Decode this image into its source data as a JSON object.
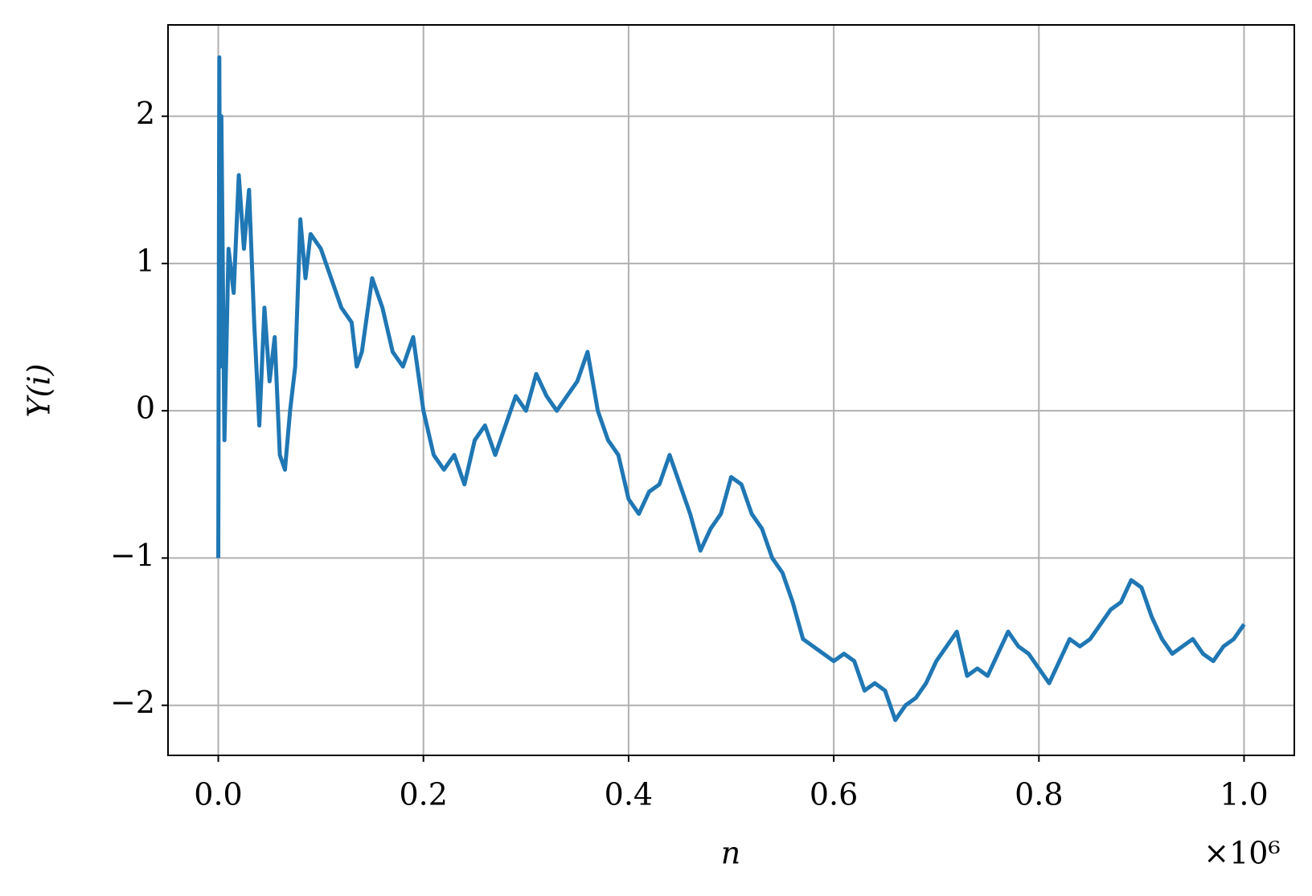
{
  "chart_data": {
    "type": "line",
    "x_label": "n",
    "y_label": "Y(i)",
    "x_offset_label": "×10⁶",
    "color": "#1f77b4",
    "grid": true,
    "xlim": [
      -0.049,
      1.049
    ],
    "ylim": [
      -2.34,
      2.62
    ],
    "xticks": [
      {
        "value": 0,
        "label": "0.0"
      },
      {
        "value": 0.2,
        "label": "0.2"
      },
      {
        "value": 0.4,
        "label": "0.4"
      },
      {
        "value": 0.6,
        "label": "0.6"
      },
      {
        "value": 0.8,
        "label": "0.8"
      },
      {
        "value": 1,
        "label": "1.0"
      }
    ],
    "yticks": [
      {
        "value": -2,
        "label": "−2"
      },
      {
        "value": -1,
        "label": "−1"
      },
      0,
      1,
      2
    ],
    "x": [
      0,
      0.001,
      0.002,
      0.003,
      0.006,
      0.01,
      0.015,
      0.02,
      0.025,
      0.03,
      0.035,
      0.04,
      0.045,
      0.05,
      0.055,
      0.06,
      0.065,
      0.07,
      0.075,
      0.08,
      0.085,
      0.09,
      0.1,
      0.11,
      0.12,
      0.13,
      0.135,
      0.14,
      0.15,
      0.16,
      0.17,
      0.18,
      0.19,
      0.2,
      0.21,
      0.22,
      0.23,
      0.24,
      0.25,
      0.26,
      0.27,
      0.28,
      0.29,
      0.3,
      0.31,
      0.32,
      0.33,
      0.34,
      0.35,
      0.36,
      0.37,
      0.38,
      0.39,
      0.4,
      0.41,
      0.42,
      0.43,
      0.44,
      0.45,
      0.46,
      0.47,
      0.48,
      0.49,
      0.5,
      0.51,
      0.52,
      0.53,
      0.54,
      0.55,
      0.56,
      0.57,
      0.58,
      0.59,
      0.6,
      0.61,
      0.62,
      0.63,
      0.64,
      0.65,
      0.66,
      0.67,
      0.68,
      0.69,
      0.7,
      0.71,
      0.72,
      0.73,
      0.74,
      0.75,
      0.76,
      0.77,
      0.78,
      0.79,
      0.8,
      0.81,
      0.82,
      0.83,
      0.84,
      0.85,
      0.86,
      0.87,
      0.88,
      0.89,
      0.9,
      0.91,
      0.92,
      0.93,
      0.94,
      0.95,
      0.96,
      0.97,
      0.98,
      0.99,
      1.0
    ],
    "values": [
      -1,
      2.4,
      0.3,
      2.0,
      -0.2,
      1.1,
      0.8,
      1.6,
      1.1,
      1.5,
      0.6,
      -0.1,
      0.7,
      0.2,
      0.5,
      -0.3,
      -0.4,
      0.0,
      0.3,
      1.3,
      0.9,
      1.2,
      1.1,
      0.9,
      0.7,
      0.6,
      0.3,
      0.4,
      0.9,
      0.7,
      0.4,
      0.3,
      0.5,
      0.0,
      -0.3,
      -0.4,
      -0.3,
      -0.5,
      -0.2,
      -0.1,
      -0.3,
      -0.1,
      0.1,
      0.0,
      0.25,
      0.1,
      0.0,
      0.1,
      0.2,
      0.4,
      0.0,
      -0.2,
      -0.3,
      -0.6,
      -0.7,
      -0.55,
      -0.5,
      -0.3,
      -0.5,
      -0.7,
      -0.95,
      -0.8,
      -0.7,
      -0.45,
      -0.5,
      -0.7,
      -0.8,
      -1.0,
      -1.1,
      -1.3,
      -1.55,
      -1.6,
      -1.65,
      -1.7,
      -1.65,
      -1.7,
      -1.9,
      -1.85,
      -1.9,
      -2.1,
      -2.0,
      -1.95,
      -1.85,
      -1.7,
      -1.6,
      -1.5,
      -1.8,
      -1.75,
      -1.8,
      -1.65,
      -1.5,
      -1.6,
      -1.65,
      -1.75,
      -1.85,
      -1.7,
      -1.55,
      -1.6,
      -1.55,
      -1.45,
      -1.35,
      -1.3,
      -1.15,
      -1.2,
      -1.4,
      -1.55,
      -1.65,
      -1.6,
      -1.55,
      -1.65,
      -1.7,
      -1.6,
      -1.55,
      -1.45
    ]
  }
}
